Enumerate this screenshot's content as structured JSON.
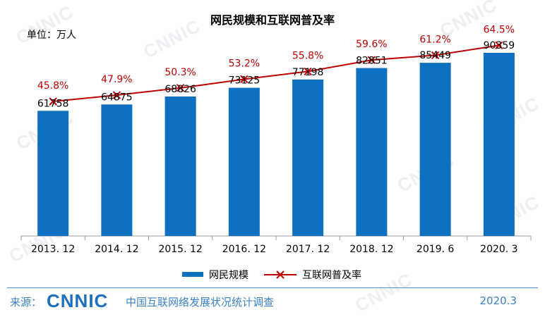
{
  "chart_data": {
    "type": "bar",
    "title": "网民规模和互联网普及率",
    "unit_label": "单位：万人",
    "categories": [
      "2013. 12",
      "2014. 12",
      "2015. 12",
      "2016. 12",
      "2017. 12",
      "2018. 12",
      "2019. 6",
      "2020. 3"
    ],
    "series": [
      {
        "name": "网民规模",
        "kind": "bar",
        "color": "#0e70c0",
        "values": [
          61758,
          64875,
          68826,
          73125,
          77198,
          82851,
          85449,
          90359
        ],
        "labels": [
          "61758",
          "64875",
          "68826",
          "73125",
          "77198",
          "82851",
          "85449",
          "90359"
        ]
      },
      {
        "name": "互联网普及率",
        "kind": "line",
        "color": "#c00000",
        "values": [
          45.8,
          47.9,
          50.3,
          53.2,
          55.8,
          59.6,
          61.2,
          64.5
        ],
        "labels": [
          "45.8%",
          "47.9%",
          "50.3%",
          "53.2%",
          "55.8%",
          "59.6%",
          "61.2%",
          "64.5%"
        ]
      }
    ],
    "legend_position": "bottom",
    "grid": false
  },
  "footer": {
    "source_label": "来源：",
    "logo_text": "CNNIC",
    "source_org": "中国互联网络发展状况统计调查",
    "date": "2020.3"
  }
}
